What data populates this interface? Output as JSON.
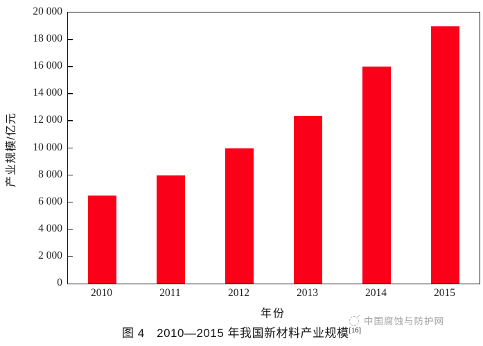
{
  "chart_data": {
    "type": "bar",
    "categories": [
      "2010",
      "2011",
      "2012",
      "2013",
      "2014",
      "2015"
    ],
    "values": [
      6500,
      8000,
      10000,
      12400,
      16000,
      19000
    ],
    "title": "",
    "xlabel": "年份",
    "ylabel": "产业规模/亿元",
    "ylim": [
      0,
      20000
    ],
    "ytick_step": 2000,
    "ytick_labels": [
      "0",
      "2 000",
      "4 000",
      "6 000",
      "8 000",
      "10 000",
      "12 000",
      "14 000",
      "16 000",
      "18 000",
      "20 000"
    ],
    "bar_color": "#fb0019",
    "axis_color": "#1a1a1a",
    "grid": false,
    "frame": true,
    "legend": "none"
  },
  "caption": {
    "text": "图 4　2010—2015 年我国新材料产业规模",
    "reference": "[16]"
  },
  "watermark": {
    "logo_icon": "sketch-circle-icon",
    "text": "中国腐蚀与防护网",
    "color": "#a3a3a3"
  }
}
